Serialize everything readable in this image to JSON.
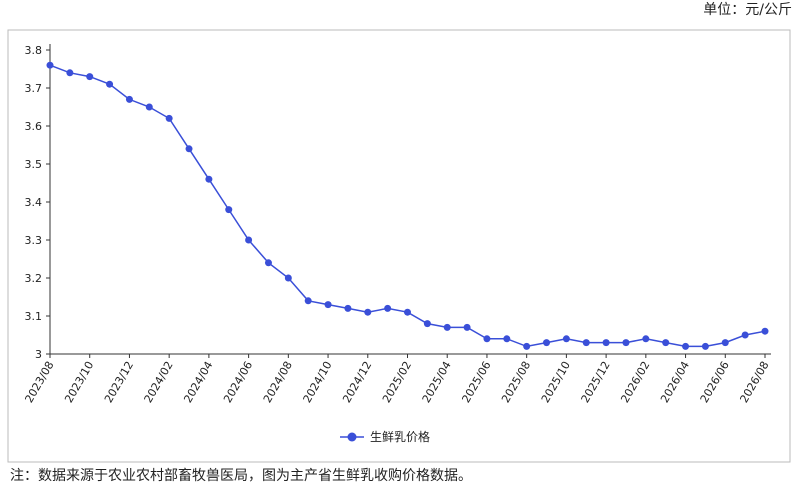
{
  "chart_data": {
    "type": "line",
    "unit": "单位：元/公斤",
    "note": "注：数据来源于农业农村部畜牧兽医局，图为主产省生鲜乳收购价格数据。",
    "categories": [
      "2023/08",
      null,
      "2023/10",
      null,
      "2023/12",
      null,
      "2024/02",
      null,
      "2024/04",
      null,
      "2024/06",
      null,
      "2024/08",
      null,
      "2024/10",
      null,
      "2024/12",
      null,
      "2025/02",
      null,
      "2025/04",
      null,
      "2025/06",
      null,
      "2025/08",
      null,
      "2025/10",
      null,
      "2025/12",
      null,
      "2026/02",
      null,
      "2026/04",
      null,
      "2026/06",
      null,
      "2026/08"
    ],
    "series": [
      {
        "name": "生鲜乳价格",
        "color": "#3a4fd8",
        "values": [
          3.76,
          3.74,
          3.73,
          3.71,
          3.67,
          3.65,
          3.62,
          3.54,
          3.46,
          3.38,
          3.3,
          3.24,
          3.2,
          3.14,
          3.13,
          3.12,
          3.11,
          3.12,
          3.11,
          3.08,
          3.07,
          3.07,
          3.04,
          3.04,
          3.02,
          3.03,
          3.04,
          3.03,
          3.03,
          3.03,
          3.04,
          3.03,
          3.02,
          3.02,
          3.03,
          3.05,
          3.06
        ]
      }
    ],
    "ylim": [
      3,
      3.8
    ],
    "yticks": [
      3,
      3.1,
      3.2,
      3.3,
      3.4,
      3.5,
      3.6,
      3.7,
      3.8
    ],
    "legend": "bottom"
  }
}
